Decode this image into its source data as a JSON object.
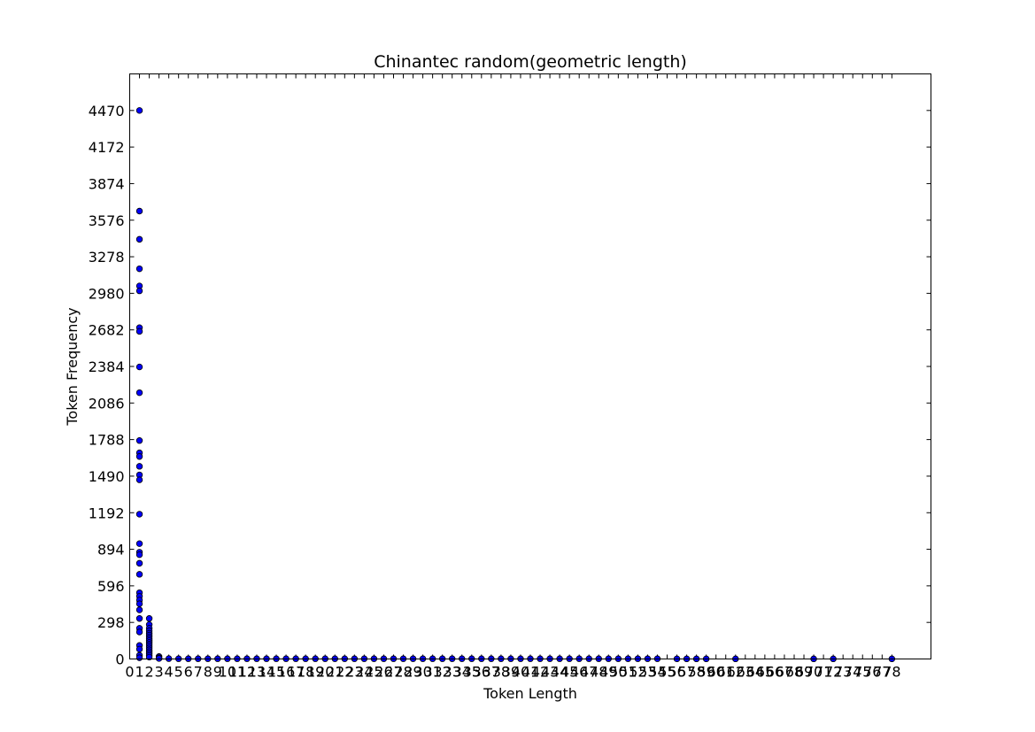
{
  "chart_data": {
    "type": "scatter",
    "title": "Chinantec random(geometric length)",
    "xlabel": "Token Length",
    "ylabel": "Token Frequency",
    "xlim": [
      0,
      82
    ],
    "ylim": [
      0,
      4768
    ],
    "y_ticks": [
      0,
      298,
      596,
      894,
      1192,
      1490,
      1788,
      2086,
      2384,
      2682,
      2980,
      3278,
      3576,
      3874,
      4172,
      4470
    ],
    "x_ticks": [
      0,
      1,
      2,
      3,
      4,
      5,
      6,
      7,
      8,
      9,
      10,
      11,
      12,
      13,
      14,
      15,
      16,
      17,
      18,
      19,
      20,
      21,
      22,
      23,
      24,
      25,
      26,
      27,
      28,
      29,
      30,
      31,
      32,
      33,
      34,
      35,
      36,
      37,
      38,
      39,
      40,
      41,
      42,
      43,
      44,
      45,
      46,
      47,
      48,
      49,
      50,
      51,
      52,
      53,
      54,
      55,
      56,
      57,
      58,
      59,
      60,
      61,
      62,
      63,
      64,
      65,
      66,
      67,
      68,
      69,
      70,
      71,
      72,
      73,
      74,
      75,
      76,
      77,
      78
    ],
    "grid": false,
    "legend": "none",
    "marker_color": "#0000ff",
    "points": [
      {
        "x": 1,
        "y": 4470
      },
      {
        "x": 1,
        "y": 3650
      },
      {
        "x": 1,
        "y": 3420
      },
      {
        "x": 1,
        "y": 3180
      },
      {
        "x": 1,
        "y": 3040
      },
      {
        "x": 1,
        "y": 3000
      },
      {
        "x": 1,
        "y": 2700
      },
      {
        "x": 1,
        "y": 2670
      },
      {
        "x": 1,
        "y": 2380
      },
      {
        "x": 1,
        "y": 2170
      },
      {
        "x": 1,
        "y": 1780
      },
      {
        "x": 1,
        "y": 1680
      },
      {
        "x": 1,
        "y": 1650
      },
      {
        "x": 1,
        "y": 1570
      },
      {
        "x": 1,
        "y": 1500
      },
      {
        "x": 1,
        "y": 1460
      },
      {
        "x": 1,
        "y": 1180
      },
      {
        "x": 1,
        "y": 940
      },
      {
        "x": 1,
        "y": 870
      },
      {
        "x": 1,
        "y": 850
      },
      {
        "x": 1,
        "y": 780
      },
      {
        "x": 1,
        "y": 690
      },
      {
        "x": 1,
        "y": 540
      },
      {
        "x": 1,
        "y": 510
      },
      {
        "x": 1,
        "y": 480
      },
      {
        "x": 1,
        "y": 450
      },
      {
        "x": 1,
        "y": 400
      },
      {
        "x": 1,
        "y": 330
      },
      {
        "x": 1,
        "y": 250
      },
      {
        "x": 1,
        "y": 220
      },
      {
        "x": 1,
        "y": 110
      },
      {
        "x": 1,
        "y": 80
      },
      {
        "x": 1,
        "y": 30
      },
      {
        "x": 1,
        "y": 10
      },
      {
        "x": 2,
        "y": 330
      },
      {
        "x": 2,
        "y": 280
      },
      {
        "x": 2,
        "y": 250
      },
      {
        "x": 2,
        "y": 230
      },
      {
        "x": 2,
        "y": 210
      },
      {
        "x": 2,
        "y": 195
      },
      {
        "x": 2,
        "y": 180
      },
      {
        "x": 2,
        "y": 165
      },
      {
        "x": 2,
        "y": 150
      },
      {
        "x": 2,
        "y": 135
      },
      {
        "x": 2,
        "y": 120
      },
      {
        "x": 2,
        "y": 105
      },
      {
        "x": 2,
        "y": 90
      },
      {
        "x": 2,
        "y": 75
      },
      {
        "x": 2,
        "y": 60
      },
      {
        "x": 2,
        "y": 45
      },
      {
        "x": 2,
        "y": 30
      },
      {
        "x": 2,
        "y": 15
      },
      {
        "x": 3,
        "y": 20
      },
      {
        "x": 3,
        "y": 10
      },
      {
        "x": 3,
        "y": 4
      },
      {
        "x": 4,
        "y": 3
      },
      {
        "x": 5,
        "y": 2
      },
      {
        "x": 6,
        "y": 2
      },
      {
        "x": 7,
        "y": 2
      },
      {
        "x": 8,
        "y": 2
      },
      {
        "x": 9,
        "y": 2
      },
      {
        "x": 10,
        "y": 2
      },
      {
        "x": 11,
        "y": 2
      },
      {
        "x": 12,
        "y": 2
      },
      {
        "x": 13,
        "y": 2
      },
      {
        "x": 14,
        "y": 2
      },
      {
        "x": 15,
        "y": 2
      },
      {
        "x": 16,
        "y": 2
      },
      {
        "x": 17,
        "y": 2
      },
      {
        "x": 18,
        "y": 2
      },
      {
        "x": 19,
        "y": 2
      },
      {
        "x": 20,
        "y": 2
      },
      {
        "x": 21,
        "y": 2
      },
      {
        "x": 22,
        "y": 2
      },
      {
        "x": 23,
        "y": 2
      },
      {
        "x": 24,
        "y": 2
      },
      {
        "x": 25,
        "y": 2
      },
      {
        "x": 26,
        "y": 2
      },
      {
        "x": 27,
        "y": 2
      },
      {
        "x": 28,
        "y": 2
      },
      {
        "x": 29,
        "y": 2
      },
      {
        "x": 30,
        "y": 2
      },
      {
        "x": 31,
        "y": 2
      },
      {
        "x": 32,
        "y": 2
      },
      {
        "x": 33,
        "y": 2
      },
      {
        "x": 34,
        "y": 2
      },
      {
        "x": 35,
        "y": 2
      },
      {
        "x": 36,
        "y": 2
      },
      {
        "x": 37,
        "y": 2
      },
      {
        "x": 38,
        "y": 2
      },
      {
        "x": 39,
        "y": 2
      },
      {
        "x": 40,
        "y": 2
      },
      {
        "x": 41,
        "y": 2
      },
      {
        "x": 42,
        "y": 2
      },
      {
        "x": 43,
        "y": 2
      },
      {
        "x": 44,
        "y": 2
      },
      {
        "x": 45,
        "y": 2
      },
      {
        "x": 46,
        "y": 2
      },
      {
        "x": 47,
        "y": 2
      },
      {
        "x": 48,
        "y": 2
      },
      {
        "x": 49,
        "y": 2
      },
      {
        "x": 50,
        "y": 2
      },
      {
        "x": 51,
        "y": 2
      },
      {
        "x": 52,
        "y": 2
      },
      {
        "x": 53,
        "y": 2
      },
      {
        "x": 54,
        "y": 2
      },
      {
        "x": 56,
        "y": 1
      },
      {
        "x": 57,
        "y": 1
      },
      {
        "x": 58,
        "y": 1
      },
      {
        "x": 59,
        "y": 1
      },
      {
        "x": 62,
        "y": 1
      },
      {
        "x": 70,
        "y": 1
      },
      {
        "x": 72,
        "y": 1
      },
      {
        "x": 78,
        "y": 1
      }
    ]
  }
}
